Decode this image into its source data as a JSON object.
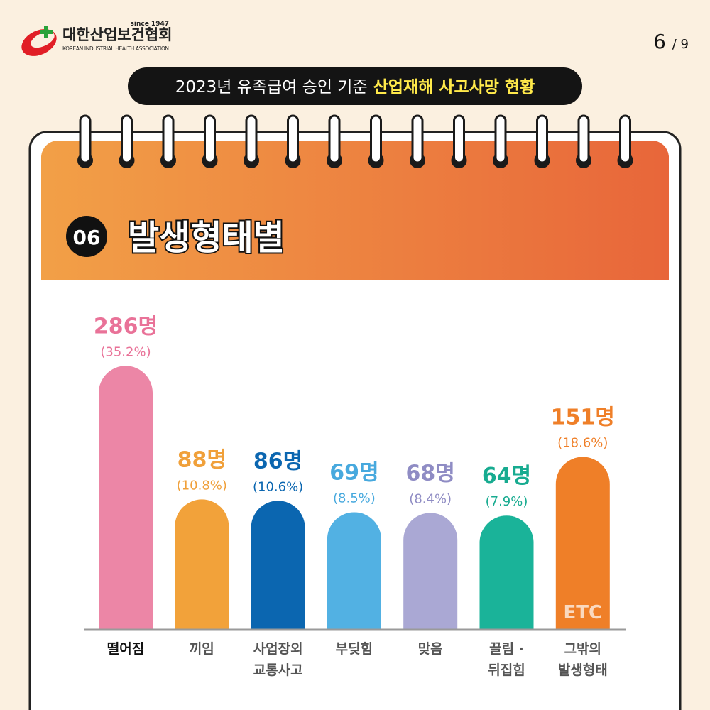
{
  "logo": {
    "name": "대한산업보건협회",
    "since": "since 1947",
    "english": "KOREAN INDUSTRIAL HEALTH ASSOCIATION"
  },
  "page": {
    "current": "6",
    "total": "/ 9"
  },
  "header": {
    "title": "2023년 유족급여 승인 기준",
    "highlight": "산업재해 사고사망 현황"
  },
  "section": {
    "number": "06",
    "title": "발생형태별"
  },
  "chart_data": {
    "type": "bar",
    "categories": [
      "떨어짐",
      "끼임",
      "사업장외\n교통사고",
      "부딪힘",
      "맞음",
      "끌림 ·\n뒤집힘",
      "그밖의\n발생형태"
    ],
    "values": [
      286,
      88,
      86,
      69,
      68,
      64,
      151
    ],
    "value_labels": [
      "286명",
      "88명",
      "86명",
      "69명",
      "68명",
      "64명",
      "151명"
    ],
    "share_labels": [
      "(35.2%)",
      "(10.8%)",
      "(10.6%)",
      "(8.5%)",
      "(8.4%)",
      "(7.9%)",
      "(18.6%)"
    ],
    "colors": [
      "#ec86a6",
      "#f2a23a",
      "#0b66b0",
      "#52b1e3",
      "#aaa8d4",
      "#1ab399",
      "#ef7f28"
    ],
    "label_colors": [
      "#e97298",
      "#f0a03a",
      "#0b66b0",
      "#47a9de",
      "#8f8cc4",
      "#17ab90",
      "#ef7f28"
    ],
    "etc_label": "ETC"
  }
}
